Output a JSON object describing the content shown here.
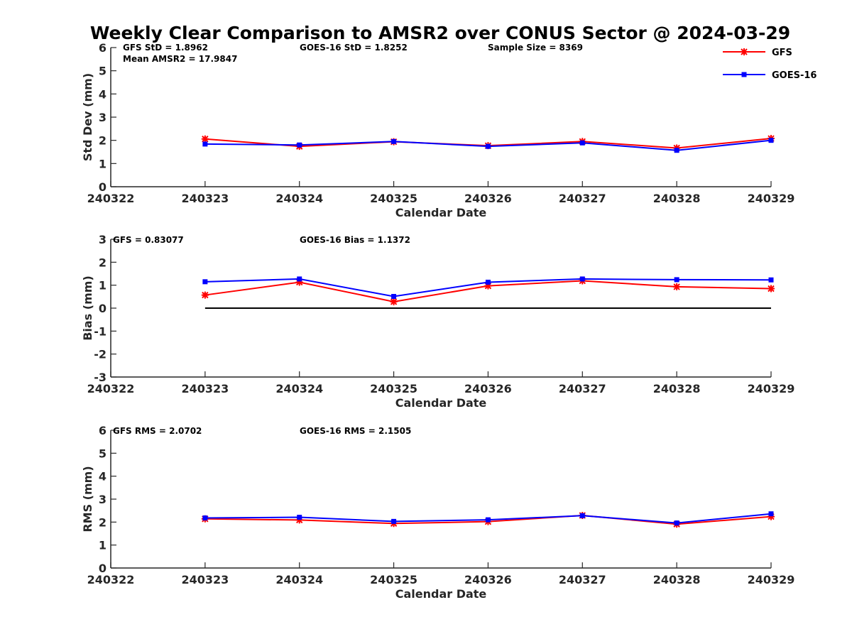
{
  "title": "Weekly Clear Comparison to AMSR2 over CONUS Sector @ 2024-03-29",
  "legend": {
    "placement": "top-right",
    "entries": [
      {
        "label": "GFS",
        "color": "#ff0000",
        "marker": "asterisk"
      },
      {
        "label": "GOES-16",
        "color": "#0000ff",
        "marker": "square"
      }
    ]
  },
  "chart_data": [
    {
      "type": "line",
      "xlabel": "Calendar Date",
      "ylabel": "Std Dev (mm)",
      "ylim": [
        0,
        6
      ],
      "yticks": [
        0,
        1,
        2,
        3,
        4,
        5,
        6
      ],
      "x_tick_labels": [
        "240322",
        "240323",
        "240324",
        "240325",
        "240326",
        "240327",
        "240328",
        "240329"
      ],
      "categories": [
        "240323",
        "240324",
        "240325",
        "240326",
        "240327",
        "240328",
        "240329"
      ],
      "zero_line": false,
      "annotations": [
        "GFS StD = 1.8962",
        "Mean AMSR2 = 17.9847",
        "GOES-16 StD = 1.8252",
        "Sample Size = 8369"
      ],
      "series": [
        {
          "name": "GFS",
          "color": "#ff0000",
          "values": [
            2.06,
            1.74,
            1.94,
            1.77,
            1.95,
            1.67,
            2.08
          ]
        },
        {
          "name": "GOES-16",
          "color": "#0000ff",
          "values": [
            1.84,
            1.8,
            1.95,
            1.74,
            1.89,
            1.57,
            2.0
          ]
        }
      ]
    },
    {
      "type": "line",
      "xlabel": "Calendar Date",
      "ylabel": "Bias (mm)",
      "ylim": [
        -3,
        3
      ],
      "yticks": [
        -3,
        -2,
        -1,
        0,
        1,
        2,
        3
      ],
      "x_tick_labels": [
        "240322",
        "240323",
        "240324",
        "240325",
        "240326",
        "240327",
        "240328",
        "240329"
      ],
      "categories": [
        "240323",
        "240324",
        "240325",
        "240326",
        "240327",
        "240328",
        "240329"
      ],
      "zero_line": true,
      "annotations": [
        "GFS = 0.83077",
        "GOES-16 Bias  = 1.1372"
      ],
      "series": [
        {
          "name": "GFS",
          "color": "#ff0000",
          "values": [
            0.57,
            1.13,
            0.28,
            0.97,
            1.19,
            0.93,
            0.85
          ]
        },
        {
          "name": "GOES-16",
          "color": "#0000ff",
          "values": [
            1.15,
            1.27,
            0.51,
            1.13,
            1.27,
            1.24,
            1.23
          ]
        }
      ]
    },
    {
      "type": "line",
      "xlabel": "Calendar Date",
      "ylabel": "RMS (mm)",
      "ylim": [
        0,
        6
      ],
      "yticks": [
        0,
        1,
        2,
        3,
        4,
        5,
        6
      ],
      "x_tick_labels": [
        "240322",
        "240323",
        "240324",
        "240325",
        "240326",
        "240327",
        "240328",
        "240329"
      ],
      "categories": [
        "240323",
        "240324",
        "240325",
        "240326",
        "240327",
        "240328",
        "240329"
      ],
      "zero_line": false,
      "annotations": [
        "GFS RMS = 2.0702",
        "GOES-16 RMS = 2.1505"
      ],
      "series": [
        {
          "name": "GFS",
          "color": "#ff0000",
          "values": [
            2.14,
            2.09,
            1.94,
            2.02,
            2.29,
            1.91,
            2.24
          ]
        },
        {
          "name": "GOES-16",
          "color": "#0000ff",
          "values": [
            2.18,
            2.21,
            2.03,
            2.1,
            2.28,
            1.96,
            2.36
          ]
        }
      ]
    }
  ]
}
